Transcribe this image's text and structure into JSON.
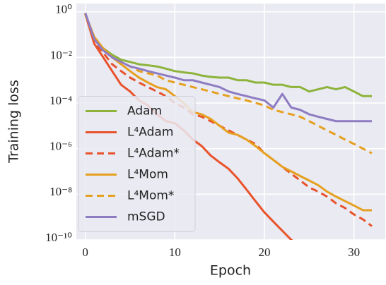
{
  "chart_data": {
    "type": "line",
    "x_label": "Epoch",
    "y_label": "Training loss",
    "x": [
      0,
      1,
      2,
      3,
      4,
      5,
      6,
      7,
      8,
      9,
      10,
      11,
      12,
      13,
      14,
      15,
      16,
      17,
      18,
      19,
      20,
      21,
      22,
      23,
      24,
      25,
      26,
      27,
      28,
      29,
      30,
      31,
      32
    ],
    "series": [
      {
        "name": "Adam",
        "color": "#8db33a",
        "linestyle": "solid",
        "values": [
          0.89,
          0.063,
          0.025,
          0.013,
          0.0079,
          0.0063,
          0.005,
          0.0045,
          0.004,
          0.0032,
          0.0025,
          0.0022,
          0.002,
          0.0016,
          0.0014,
          0.0013,
          0.0013,
          0.001,
          0.001,
          0.00079,
          0.00079,
          0.00063,
          0.00063,
          0.0005,
          0.0005,
          0.00032,
          0.0004,
          0.0005,
          0.0004,
          0.0005,
          0.00032,
          0.0002,
          0.0002
        ]
      },
      {
        "name": "L⁴Adam",
        "color": "#e8532b",
        "linestyle": "solid",
        "values": [
          0.79,
          0.04,
          0.01,
          0.0025,
          0.00063,
          0.00032,
          0.00013,
          7.9e-05,
          3.2e-05,
          1.6e-05,
          1.3e-05,
          6.3e-06,
          2.5e-06,
          1.3e-06,
          5e-07,
          2.5e-07,
          1.3e-07,
          5e-08,
          1.6e-08,
          5e-09,
          1.6e-09,
          6.3e-10,
          2.5e-10,
          1e-10,
          5e-11,
          3.2e-11,
          null,
          null,
          null,
          null,
          null,
          null,
          null
        ]
      },
      {
        "name": "L⁴Adam*",
        "color": "#e8532b",
        "linestyle": "dashed",
        "values": [
          0.79,
          0.05,
          0.016,
          0.005,
          0.0025,
          0.0013,
          0.00079,
          0.0005,
          0.00032,
          0.0002,
          0.0001,
          6.3e-05,
          3.2e-05,
          2.5e-05,
          1.6e-05,
          1e-05,
          6.3e-06,
          4e-06,
          2.5e-06,
          1.6e-06,
          6.3e-07,
          3.2e-07,
          1.6e-07,
          7.9e-08,
          4e-08,
          2e-08,
          1.3e-08,
          7.9e-09,
          4e-09,
          2.5e-09,
          1.3e-09,
          7.9e-10,
          4e-10
        ]
      },
      {
        "name": "L⁴Mom",
        "color": "#e6a020",
        "linestyle": "solid",
        "values": [
          0.79,
          0.079,
          0.025,
          0.01,
          0.005,
          0.0025,
          0.0013,
          0.00079,
          0.0005,
          0.0004,
          0.0002,
          0.0001,
          4e-05,
          3.2e-05,
          2e-05,
          1e-05,
          5e-06,
          4e-06,
          2.5e-06,
          1.3e-06,
          6.3e-07,
          3.2e-07,
          1.6e-07,
          1e-07,
          6.3e-08,
          4e-08,
          2.5e-08,
          1.3e-08,
          7.9e-09,
          5e-09,
          3.2e-09,
          2e-09,
          2e-09
        ]
      },
      {
        "name": "L⁴Mom*",
        "color": "#e6a020",
        "linestyle": "dashed",
        "values": [
          0.79,
          0.063,
          0.025,
          0.01,
          0.0063,
          0.004,
          0.0025,
          0.002,
          0.0016,
          0.001,
          0.00079,
          0.00063,
          0.0005,
          0.0004,
          0.00032,
          0.00025,
          0.0002,
          0.00016,
          0.00013,
          0.0001,
          7.9e-05,
          5e-05,
          4e-05,
          3.2e-05,
          2.5e-05,
          1.6e-05,
          1e-05,
          6.3e-06,
          4e-06,
          2.5e-06,
          1.6e-06,
          1e-06,
          6.3e-07
        ]
      },
      {
        "name": "mSGD",
        "color": "#8e7cc3",
        "linestyle": "solid",
        "values": [
          0.89,
          0.063,
          0.02,
          0.01,
          0.0063,
          0.004,
          0.0032,
          0.0025,
          0.002,
          0.0016,
          0.0013,
          0.001,
          0.001,
          0.00079,
          0.00063,
          0.0005,
          0.00032,
          0.00025,
          0.0002,
          0.00016,
          0.00013,
          6.3e-05,
          0.00025,
          6.3e-05,
          5e-05,
          3.2e-05,
          2.5e-05,
          2e-05,
          1.6e-05,
          1.6e-05,
          1.6e-05,
          1.6e-05,
          1.6e-05
        ]
      }
    ],
    "xlim": [
      -1,
      33.5
    ],
    "xticks": [
      0,
      10,
      20,
      30
    ],
    "ylim": [
      1e-10,
      2.3
    ],
    "y_scale": "log",
    "yticks": [
      {
        "value": 1,
        "label": "10⁰"
      },
      {
        "value": 0.01,
        "label": "10⁻²"
      },
      {
        "value": 0.0001,
        "label": "10⁻⁴"
      },
      {
        "value": 1e-06,
        "label": "10⁻⁶"
      },
      {
        "value": 1e-08,
        "label": "10⁻⁸"
      },
      {
        "value": 1e-10,
        "label": "10⁻¹⁰"
      }
    ],
    "grid": true,
    "legend": "center left"
  }
}
